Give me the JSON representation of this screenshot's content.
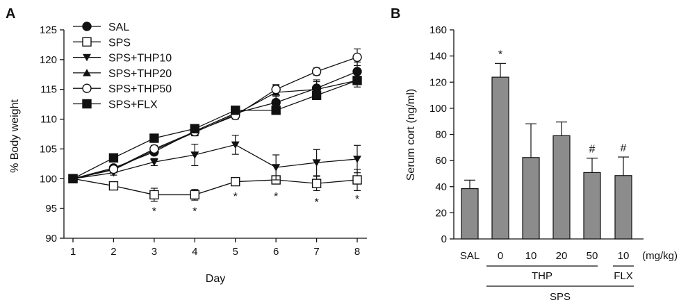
{
  "chart_data": [
    {
      "panel": "A",
      "type": "line",
      "xlabel": "Day",
      "ylabel": "% Body weight",
      "x": [
        1,
        2,
        3,
        4,
        5,
        6,
        7,
        8
      ],
      "xticks": [
        "1",
        "2",
        "3",
        "4",
        "5",
        "6",
        "7",
        "8"
      ],
      "ylim": [
        90,
        125
      ],
      "yticks": [
        "90",
        "95",
        "100",
        "105",
        "110",
        "115",
        "120",
        "125"
      ],
      "legend_position": "top-left",
      "series": [
        {
          "name": "SAL",
          "marker": "filled-circle",
          "values": [
            100,
            101.8,
            104.5,
            108.0,
            111.0,
            112.8,
            115.2,
            118.0
          ],
          "errors": [
            0,
            0.4,
            0.5,
            0.6,
            0.7,
            1.0,
            1.4,
            1.6
          ]
        },
        {
          "name": "SPS",
          "marker": "open-square",
          "values": [
            100,
            98.8,
            97.3,
            97.3,
            99.5,
            99.8,
            99.2,
            99.8
          ],
          "errors": [
            0,
            0.3,
            1.1,
            0.9,
            0.4,
            0.6,
            1.2,
            1.8
          ]
        },
        {
          "name": "SPS+THP10",
          "marker": "filled-triangle-down",
          "values": [
            100,
            101.0,
            102.8,
            104.0,
            105.7,
            101.9,
            102.7,
            103.3
          ],
          "errors": [
            0,
            0.4,
            0.6,
            1.8,
            1.6,
            2.1,
            2.2,
            2.3
          ]
        },
        {
          "name": "SPS+THP20",
          "marker": "filled-triangle-up",
          "values": [
            100,
            101.5,
            104.8,
            107.8,
            110.8,
            114.5,
            115.0,
            116.5
          ],
          "errors": [
            0,
            0.4,
            0.5,
            0.6,
            0.7,
            1.2,
            1.3,
            1.1
          ]
        },
        {
          "name": "SPS+THP50",
          "marker": "open-circle",
          "values": [
            100,
            101.6,
            105.0,
            107.9,
            110.6,
            115.0,
            118.0,
            120.4
          ],
          "errors": [
            0,
            0.4,
            0.6,
            0.6,
            0.6,
            0.8,
            0.6,
            1.4
          ]
        },
        {
          "name": "SPS+FLX",
          "marker": "filled-square",
          "values": [
            100,
            103.5,
            106.8,
            108.4,
            111.5,
            111.5,
            114.0,
            116.5
          ],
          "errors": [
            0,
            0.3,
            0.4,
            0.3,
            0.4,
            0.4,
            0.5,
            0.6
          ]
        }
      ],
      "annotations": [
        {
          "text": "*",
          "x": 3,
          "y": 95.1
        },
        {
          "text": "*",
          "x": 4,
          "y": 95.1
        },
        {
          "text": "*",
          "x": 5,
          "y": 97.6
        },
        {
          "text": "*",
          "x": 6,
          "y": 97.6
        },
        {
          "text": "*",
          "x": 7,
          "y": 96.6
        },
        {
          "text": "*",
          "x": 8,
          "y": 97.1
        }
      ]
    },
    {
      "panel": "B",
      "type": "bar",
      "ylabel": "Serum cort (ng/ml)",
      "ylim": [
        0,
        160
      ],
      "yticks": [
        "0",
        "20",
        "40",
        "60",
        "80",
        "100",
        "120",
        "140",
        "160"
      ],
      "categories": [
        "SAL",
        "0",
        "10",
        "20",
        "50",
        "10"
      ],
      "values": [
        38.5,
        123.8,
        62.3,
        79.0,
        50.8,
        48.5
      ],
      "errors": [
        6.5,
        10.5,
        25.8,
        10.5,
        11.0,
        14.2
      ],
      "bar_color": "#8c8c8c",
      "annotations": [
        {
          "text": "*",
          "category_index": 1
        },
        {
          "text": "#",
          "category_index": 4
        },
        {
          "text": "#",
          "category_index": 5
        }
      ],
      "unit_label": "(mg/kg)",
      "group_labels": {
        "thp": "THP",
        "flx": "FLX",
        "sps": "SPS"
      }
    }
  ]
}
